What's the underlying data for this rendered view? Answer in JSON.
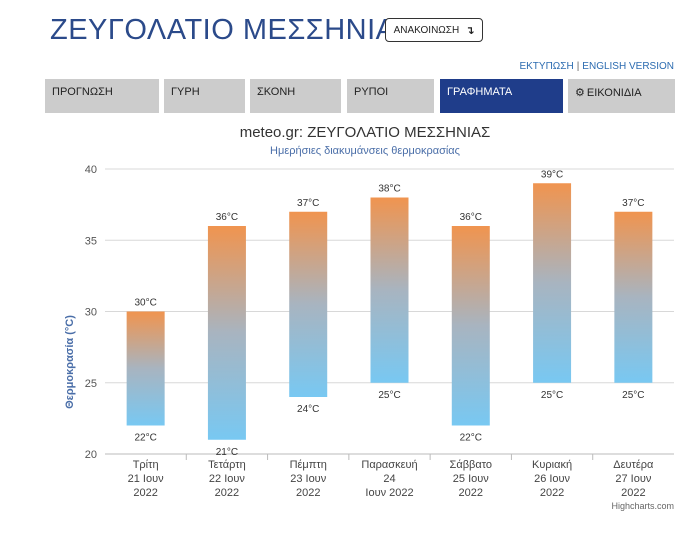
{
  "header": {
    "title": "ΖΕΥΓΟΛΑΤΙΟ ΜΕΣΣΗΝΙΑΣ",
    "announce_label": "ΑΝΑΚΟΙΝΩΣΗ",
    "announce_icon": "down-right-arrow-icon",
    "print_link": "ΕΚΤΥΠΩΣΗ",
    "link_separator": "|",
    "english_link": "ENGLISH VERSION"
  },
  "nav": {
    "tabs": [
      {
        "label": "ΠΡΟΓΝΩΣΗ",
        "active": false
      },
      {
        "label": "ΓΥΡΗ",
        "active": false
      },
      {
        "label": "ΣΚΟΝΗ",
        "active": false
      },
      {
        "label": "ΡΥΠΟΙ",
        "active": false
      },
      {
        "label": "ΓΡΑΦΗΜΑΤΑ",
        "active": true
      },
      {
        "label": "ΕΙΚΟΝΙΔΙΑ",
        "active": false,
        "icon": "gear-icon"
      }
    ],
    "active_color": "#1f3d8a",
    "tab_color": "#cccccc"
  },
  "chart_data": {
    "type": "bar",
    "subtype": "columnrange",
    "title": "meteo.gr: ΖΕΥΓΟΛΑΤΙΟ ΜΕΣΣΗΝΙΑΣ",
    "subtitle": "Ημερήσιες διακυμάνσεις θερμοκρασίας",
    "ylabel": "Θερμοκρασία (°C)",
    "xlabel": "",
    "ylim": [
      20,
      40
    ],
    "yticks": [
      "20",
      "25",
      "30",
      "35",
      "40"
    ],
    "grid": true,
    "unit": "°C",
    "categories": [
      [
        "Τρίτη",
        "21 Ιουν",
        "2022"
      ],
      [
        "Τετάρτη",
        "22 Ιουν",
        "2022"
      ],
      [
        "Πέμπτη",
        "23 Ιουν",
        "2022"
      ],
      [
        "Παρασκευή",
        "24",
        "Ιουν 2022"
      ],
      [
        "Σάββατο",
        "25 Ιουν",
        "2022"
      ],
      [
        "Κυριακή",
        "26 Ιουν",
        "2022"
      ],
      [
        "Δευτέρα",
        "27 Ιουν",
        "2022"
      ]
    ],
    "low": [
      22,
      21,
      24,
      25,
      22,
      25,
      25
    ],
    "high": [
      30,
      36,
      37,
      38,
      36,
      39,
      37
    ],
    "colors": {
      "top": "#f0944f",
      "middle": "#a8b4c0",
      "bottom": "#78c8f2",
      "text": "#333333",
      "axis_title": "#4a6ea8"
    },
    "credits": "Highcharts.com"
  }
}
